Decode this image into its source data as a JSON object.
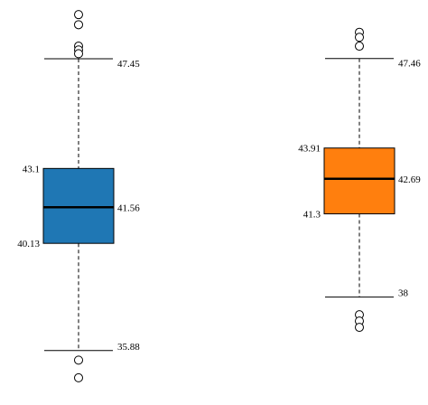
{
  "chart_data": {
    "type": "box",
    "title": "",
    "xlabel": "",
    "ylabel": "",
    "grid": false,
    "legend": "none",
    "ylim": [
      33.9,
      49.6
    ],
    "boxes": [
      {
        "color": "#1f77b4",
        "whisker_low": 35.88,
        "q1": 40.13,
        "median": 41.56,
        "q3": 43.1,
        "whisker_high": 47.45,
        "labels": {
          "whisker_low": "35.88",
          "q1": "40.13",
          "median": "41.56",
          "q3": "43.1",
          "whisker_high": "47.45"
        },
        "outliers": [
          49.2,
          48.8,
          47.95,
          47.8,
          47.65,
          35.5,
          34.8
        ]
      },
      {
        "color": "#ff7f0e",
        "whisker_low": 38,
        "q1": 41.3,
        "median": 42.69,
        "q3": 43.91,
        "whisker_high": 47.46,
        "labels": {
          "whisker_low": "38",
          "q1": "41.3",
          "median": "42.69",
          "q3": "43.91",
          "whisker_high": "47.46"
        },
        "outliers": [
          48.5,
          48.3,
          47.95,
          37.3,
          37.05,
          36.8
        ]
      }
    ]
  }
}
